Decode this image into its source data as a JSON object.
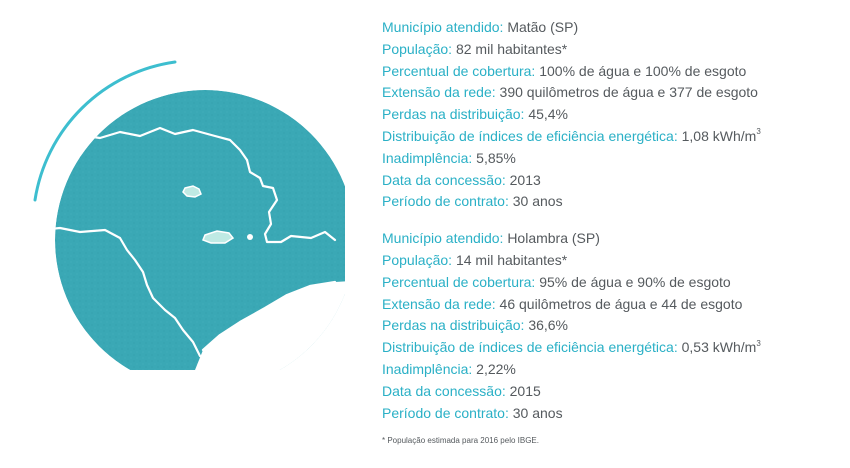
{
  "colors": {
    "accent": "#2ab0c6",
    "text": "#555a5e",
    "map_fill": "#3aa8b5",
    "ring": "#3dbecf"
  },
  "map": {
    "icon": "sao-paulo-state-map-icon"
  },
  "municipalities": [
    {
      "rows": [
        {
          "label": "Município atendido:",
          "value": "Matão (SP)"
        },
        {
          "label": "População:",
          "value": "82 mil habitantes*"
        },
        {
          "label": "Percentual de cobertura:",
          "value": "100% de água e 100% de esgoto"
        },
        {
          "label": "Extensão da rede:",
          "value": "390 quilômetros de água e 377 de esgoto"
        },
        {
          "label": "Perdas na distribuição:",
          "value": "45,4%"
        },
        {
          "label": "Distribuição de índices de eficiência energética:",
          "value": "1,08 kWh/m",
          "sup": "3"
        },
        {
          "label": "Inadimplência:",
          "value": "5,85%"
        },
        {
          "label": "Data da concessão:",
          "value": "2013"
        },
        {
          "label": "Período de contrato:",
          "value": "30 anos"
        }
      ]
    },
    {
      "rows": [
        {
          "label": "Município atendido:",
          "value": "Holambra (SP)"
        },
        {
          "label": "População:",
          "value": "14 mil habitantes*"
        },
        {
          "label": "Percentual de cobertura:",
          "value": "95% de água e 90% de esgoto"
        },
        {
          "label": "Extensão da rede:",
          "value": "46 quilômetros de água e 44 de esgoto"
        },
        {
          "label": "Perdas na distribuição:",
          "value": "36,6%"
        },
        {
          "label": "Distribuição de índices de eficiência energética:",
          "value": "0,53 kWh/m",
          "sup": "3"
        },
        {
          "label": "Inadimplência:",
          "value": "2,22%"
        },
        {
          "label": "Data da concessão:",
          "value": "2015"
        },
        {
          "label": "Período de contrato:",
          "value": "30 anos"
        }
      ]
    }
  ],
  "footnote": "* População estimada para 2016 pelo IBGE."
}
